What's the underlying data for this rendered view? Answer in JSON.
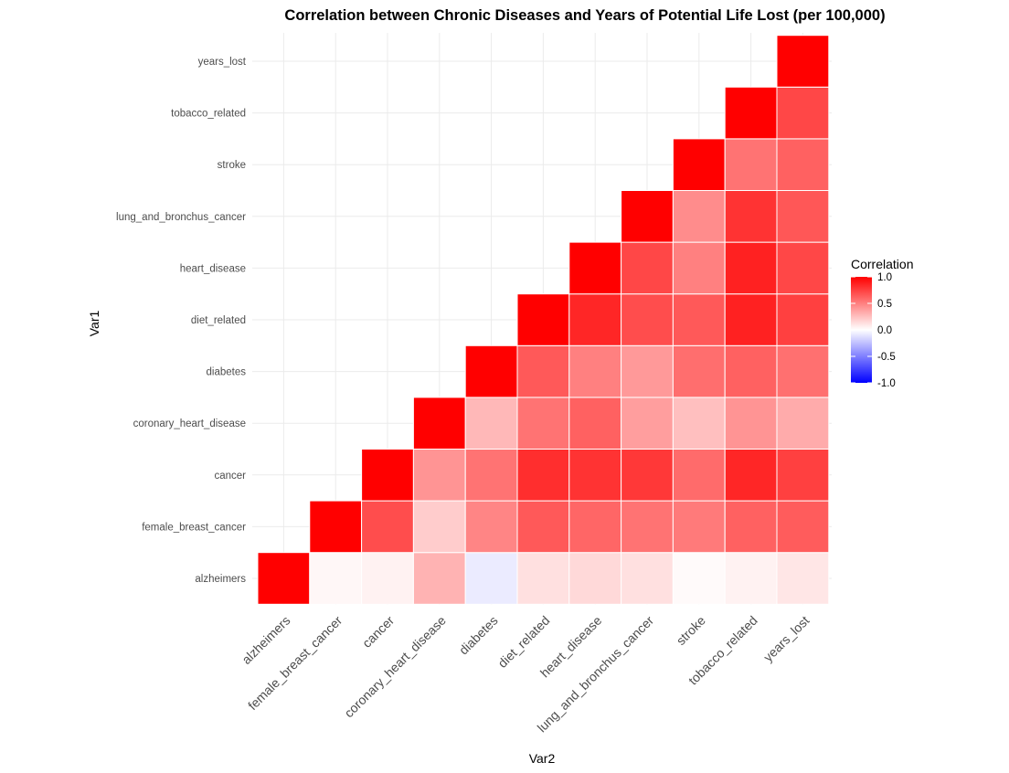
{
  "chart_data": {
    "type": "heatmap",
    "title": "Correlation between Chronic Diseases and Years of Potential Life Lost (per 100,000)",
    "xlabel": "Var2",
    "ylabel": "Var1",
    "variables": [
      "alzheimers",
      "female_breast_cancer",
      "cancer",
      "coronary_heart_disease",
      "diabetes",
      "diet_related",
      "heart_disease",
      "lung_and_bronchus_cancer",
      "stroke",
      "tobacco_related",
      "years_lost"
    ],
    "cells": [
      {
        "var1": "alzheimers",
        "var2": "alzheimers",
        "value": 1.0
      },
      {
        "var1": "alzheimers",
        "var2": "female_breast_cancer",
        "value": 0.03
      },
      {
        "var1": "alzheimers",
        "var2": "cancer",
        "value": 0.05
      },
      {
        "var1": "alzheimers",
        "var2": "coronary_heart_disease",
        "value": 0.3
      },
      {
        "var1": "alzheimers",
        "var2": "diabetes",
        "value": -0.08
      },
      {
        "var1": "alzheimers",
        "var2": "diet_related",
        "value": 0.12
      },
      {
        "var1": "alzheimers",
        "var2": "heart_disease",
        "value": 0.15
      },
      {
        "var1": "alzheimers",
        "var2": "lung_and_bronchus_cancer",
        "value": 0.12
      },
      {
        "var1": "alzheimers",
        "var2": "stroke",
        "value": 0.02
      },
      {
        "var1": "alzheimers",
        "var2": "tobacco_related",
        "value": 0.05
      },
      {
        "var1": "alzheimers",
        "var2": "years_lost",
        "value": 0.1
      },
      {
        "var1": "female_breast_cancer",
        "var2": "female_breast_cancer",
        "value": 1.0
      },
      {
        "var1": "female_breast_cancer",
        "var2": "cancer",
        "value": 0.7
      },
      {
        "var1": "female_breast_cancer",
        "var2": "coronary_heart_disease",
        "value": 0.2
      },
      {
        "var1": "female_breast_cancer",
        "var2": "diabetes",
        "value": 0.48
      },
      {
        "var1": "female_breast_cancer",
        "var2": "diet_related",
        "value": 0.65
      },
      {
        "var1": "female_breast_cancer",
        "var2": "heart_disease",
        "value": 0.6
      },
      {
        "var1": "female_breast_cancer",
        "var2": "lung_and_bronchus_cancer",
        "value": 0.55
      },
      {
        "var1": "female_breast_cancer",
        "var2": "stroke",
        "value": 0.52
      },
      {
        "var1": "female_breast_cancer",
        "var2": "tobacco_related",
        "value": 0.62
      },
      {
        "var1": "female_breast_cancer",
        "var2": "years_lost",
        "value": 0.64
      },
      {
        "var1": "cancer",
        "var2": "cancer",
        "value": 1.0
      },
      {
        "var1": "cancer",
        "var2": "coronary_heart_disease",
        "value": 0.42
      },
      {
        "var1": "cancer",
        "var2": "diabetes",
        "value": 0.55
      },
      {
        "var1": "cancer",
        "var2": "diet_related",
        "value": 0.82
      },
      {
        "var1": "cancer",
        "var2": "heart_disease",
        "value": 0.8
      },
      {
        "var1": "cancer",
        "var2": "lung_and_bronchus_cancer",
        "value": 0.78
      },
      {
        "var1": "cancer",
        "var2": "stroke",
        "value": 0.58
      },
      {
        "var1": "cancer",
        "var2": "tobacco_related",
        "value": 0.85
      },
      {
        "var1": "cancer",
        "var2": "years_lost",
        "value": 0.75
      },
      {
        "var1": "coronary_heart_disease",
        "var2": "coronary_heart_disease",
        "value": 1.0
      },
      {
        "var1": "coronary_heart_disease",
        "var2": "diabetes",
        "value": 0.28
      },
      {
        "var1": "coronary_heart_disease",
        "var2": "diet_related",
        "value": 0.55
      },
      {
        "var1": "coronary_heart_disease",
        "var2": "heart_disease",
        "value": 0.62
      },
      {
        "var1": "coronary_heart_disease",
        "var2": "lung_and_bronchus_cancer",
        "value": 0.38
      },
      {
        "var1": "coronary_heart_disease",
        "var2": "stroke",
        "value": 0.25
      },
      {
        "var1": "coronary_heart_disease",
        "var2": "tobacco_related",
        "value": 0.42
      },
      {
        "var1": "coronary_heart_disease",
        "var2": "years_lost",
        "value": 0.33
      },
      {
        "var1": "diabetes",
        "var2": "diabetes",
        "value": 1.0
      },
      {
        "var1": "diabetes",
        "var2": "diet_related",
        "value": 0.65
      },
      {
        "var1": "diabetes",
        "var2": "heart_disease",
        "value": 0.5
      },
      {
        "var1": "diabetes",
        "var2": "lung_and_bronchus_cancer",
        "value": 0.4
      },
      {
        "var1": "diabetes",
        "var2": "stroke",
        "value": 0.57
      },
      {
        "var1": "diabetes",
        "var2": "tobacco_related",
        "value": 0.62
      },
      {
        "var1": "diabetes",
        "var2": "years_lost",
        "value": 0.56
      },
      {
        "var1": "diet_related",
        "var2": "diet_related",
        "value": 1.0
      },
      {
        "var1": "diet_related",
        "var2": "heart_disease",
        "value": 0.85
      },
      {
        "var1": "diet_related",
        "var2": "lung_and_bronchus_cancer",
        "value": 0.7
      },
      {
        "var1": "diet_related",
        "var2": "stroke",
        "value": 0.65
      },
      {
        "var1": "diet_related",
        "var2": "tobacco_related",
        "value": 0.87
      },
      {
        "var1": "diet_related",
        "var2": "years_lost",
        "value": 0.75
      },
      {
        "var1": "heart_disease",
        "var2": "heart_disease",
        "value": 1.0
      },
      {
        "var1": "heart_disease",
        "var2": "lung_and_bronchus_cancer",
        "value": 0.72
      },
      {
        "var1": "heart_disease",
        "var2": "stroke",
        "value": 0.5
      },
      {
        "var1": "heart_disease",
        "var2": "tobacco_related",
        "value": 0.87
      },
      {
        "var1": "heart_disease",
        "var2": "years_lost",
        "value": 0.72
      },
      {
        "var1": "lung_and_bronchus_cancer",
        "var2": "lung_and_bronchus_cancer",
        "value": 1.0
      },
      {
        "var1": "lung_and_bronchus_cancer",
        "var2": "stroke",
        "value": 0.45
      },
      {
        "var1": "lung_and_bronchus_cancer",
        "var2": "tobacco_related",
        "value": 0.8
      },
      {
        "var1": "lung_and_bronchus_cancer",
        "var2": "years_lost",
        "value": 0.66
      },
      {
        "var1": "stroke",
        "var2": "stroke",
        "value": 1.0
      },
      {
        "var1": "stroke",
        "var2": "tobacco_related",
        "value": 0.55
      },
      {
        "var1": "stroke",
        "var2": "years_lost",
        "value": 0.62
      },
      {
        "var1": "tobacco_related",
        "var2": "tobacco_related",
        "value": 1.0
      },
      {
        "var1": "tobacco_related",
        "var2": "years_lost",
        "value": 0.72
      },
      {
        "var1": "years_lost",
        "var2": "years_lost",
        "value": 1.0
      }
    ],
    "legend": {
      "title": "Correlation",
      "placement": "right",
      "ticks": [
        1.0,
        0.5,
        0.0,
        -0.5,
        -1.0
      ],
      "tick_labels": [
        "1.0",
        "0.5",
        "0.0",
        "-0.5",
        "-1.0"
      ],
      "range": [
        -1,
        1
      ]
    },
    "colors": {
      "low": "#0000ff",
      "mid": "#ffffff",
      "high": "#ff0000",
      "grid": "#ebebeb",
      "tick_text": "#4d4d4d"
    },
    "grid": true
  }
}
